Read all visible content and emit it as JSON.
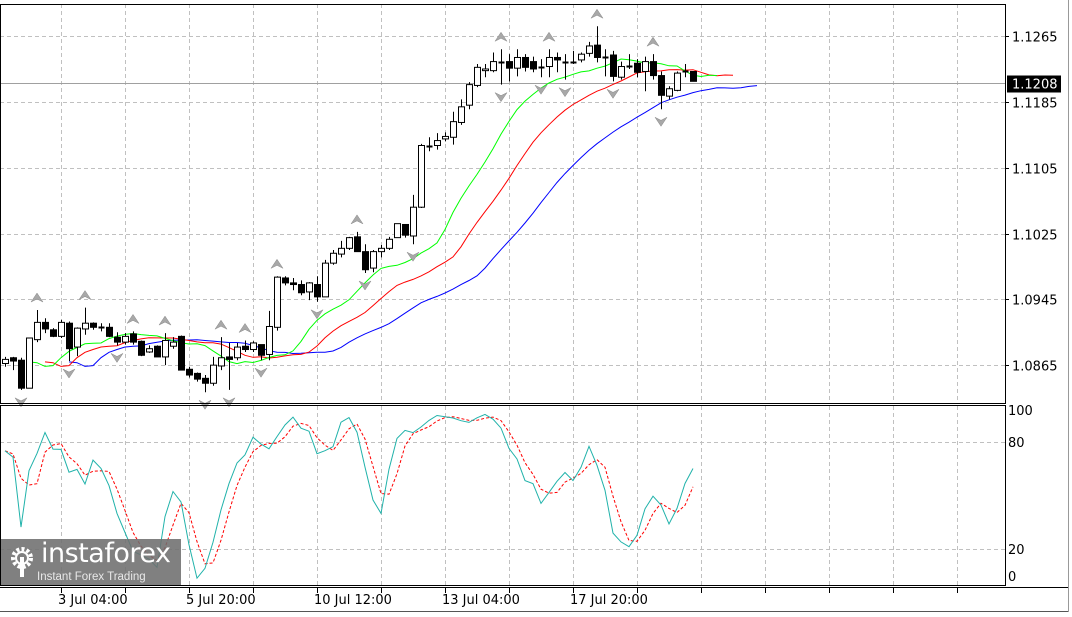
{
  "chart_data": {
    "type": "candlestick",
    "ylim": [
      1.0819,
      1.1304
    ],
    "price_ticks": [
      "1.1265",
      "1.1185",
      "1.1105",
      "1.1025",
      "1.0945",
      "1.0865"
    ],
    "current_price": "1.1208",
    "x_tick_labels": [
      {
        "label": "3 Jul 04:00",
        "candle_index": 7
      },
      {
        "label": "5 Jul 20:00",
        "candle_index": 23
      },
      {
        "label": "10 Jul 12:00",
        "candle_index": 39
      },
      {
        "label": "13 Jul 04:00",
        "candle_index": 55
      },
      {
        "label": "17 Jul 20:00",
        "candle_index": 71
      }
    ],
    "grid": true,
    "candles": [
      [
        1.0867,
        1.0875,
        1.0863,
        1.0872
      ],
      [
        1.0874,
        1.0875,
        1.0859,
        1.087
      ],
      [
        1.0871,
        1.0874,
        1.0835,
        1.0837
      ],
      [
        1.0837,
        1.0898,
        1.0837,
        1.0898
      ],
      [
        1.0896,
        1.0932,
        1.0893,
        1.0917
      ],
      [
        1.0917,
        1.0922,
        1.0904,
        1.0909
      ],
      [
        1.0908,
        1.091,
        1.0899,
        1.09
      ],
      [
        1.09,
        1.092,
        1.0898,
        1.0917
      ],
      [
        1.0916,
        1.0918,
        1.087,
        1.0885
      ],
      [
        1.0887,
        1.0911,
        1.0876,
        1.091
      ],
      [
        1.0909,
        1.0935,
        1.0902,
        1.0916
      ],
      [
        1.0916,
        1.0917,
        1.0908,
        1.0911
      ],
      [
        1.0911,
        1.0916,
        1.0906,
        1.091
      ],
      [
        1.0911,
        1.0916,
        1.0899,
        1.09
      ],
      [
        1.0899,
        1.0905,
        1.0889,
        1.0893
      ],
      [
        1.0893,
        1.0904,
        1.089,
        1.09
      ],
      [
        1.0903,
        1.0906,
        1.089,
        1.0893
      ],
      [
        1.0894,
        1.0895,
        1.0876,
        1.0877
      ],
      [
        1.0881,
        1.0889,
        1.088,
        1.0885
      ],
      [
        1.0888,
        1.0889,
        1.0875,
        1.0875
      ],
      [
        1.0875,
        1.0904,
        1.0865,
        1.0895
      ],
      [
        1.0888,
        1.0899,
        1.0885,
        1.0893
      ],
      [
        1.09,
        1.0901,
        1.0859,
        1.0859
      ],
      [
        1.086,
        1.0863,
        1.085,
        1.0853
      ],
      [
        1.0855,
        1.0856,
        1.0845,
        1.0848
      ],
      [
        1.0849,
        1.0853,
        1.0832,
        1.0843
      ],
      [
        1.0843,
        1.0875,
        1.084,
        1.0865
      ],
      [
        1.0864,
        1.0899,
        1.0859,
        1.0874
      ],
      [
        1.0875,
        1.0892,
        1.0835,
        1.0872
      ],
      [
        1.0874,
        1.0892,
        1.0871,
        1.0887
      ],
      [
        1.0888,
        1.0895,
        1.0881,
        1.0884
      ],
      [
        1.0884,
        1.0894,
        1.0881,
        1.0892
      ],
      [
        1.089,
        1.089,
        1.0871,
        1.0877
      ],
      [
        1.0878,
        1.0931,
        1.0871,
        1.0912
      ],
      [
        1.0911,
        1.0973,
        1.0907,
        1.0972
      ],
      [
        1.0971,
        1.0973,
        1.0962,
        1.0965
      ],
      [
        1.0965,
        1.0971,
        1.0956,
        1.0963
      ],
      [
        1.0963,
        1.0968,
        1.095,
        1.0953
      ],
      [
        1.0954,
        1.0966,
        1.0944,
        1.0965
      ],
      [
        1.0963,
        1.0973,
        1.0942,
        1.0948
      ],
      [
        1.0948,
        1.0993,
        1.0948,
        1.0989
      ],
      [
        1.0989,
        1.1005,
        1.0987,
        1.1001
      ],
      [
        1.1,
        1.1016,
        1.0996,
        1.1007
      ],
      [
        1.1007,
        1.1021,
        1.1005,
        1.102
      ],
      [
        1.1021,
        1.1027,
        1.1003,
        1.1003
      ],
      [
        1.1003,
        1.1012,
        1.0977,
        1.0981
      ],
      [
        1.0983,
        1.1005,
        1.0978,
        1.1003
      ],
      [
        1.1003,
        1.1011,
        1.0996,
        1.1007
      ],
      [
        1.1007,
        1.1021,
        1.1005,
        1.1018
      ],
      [
        1.102,
        1.1037,
        1.102,
        1.1037
      ],
      [
        1.1036,
        1.1036,
        1.102,
        1.1023
      ],
      [
        1.1022,
        1.1072,
        1.1012,
        1.1057
      ],
      [
        1.1057,
        1.1134,
        1.1056,
        1.1132
      ],
      [
        1.1131,
        1.1142,
        1.1125,
        1.1132
      ],
      [
        1.1132,
        1.1147,
        1.1127,
        1.1138
      ],
      [
        1.114,
        1.1148,
        1.1137,
        1.1143
      ],
      [
        1.1142,
        1.1173,
        1.1133,
        1.1161
      ],
      [
        1.116,
        1.1188,
        1.1157,
        1.1179
      ],
      [
        1.1181,
        1.1209,
        1.1176,
        1.1206
      ],
      [
        1.1205,
        1.1231,
        1.1203,
        1.1227
      ],
      [
        1.1223,
        1.1231,
        1.1215,
        1.1225
      ],
      [
        1.1223,
        1.1245,
        1.1221,
        1.1234
      ],
      [
        1.1233,
        1.1249,
        1.1206,
        1.1234
      ],
      [
        1.1234,
        1.1243,
        1.121,
        1.1226
      ],
      [
        1.1226,
        1.1249,
        1.1216,
        1.1239
      ],
      [
        1.1239,
        1.1243,
        1.1222,
        1.1227
      ],
      [
        1.1234,
        1.124,
        1.1221,
        1.1225
      ],
      [
        1.1228,
        1.1237,
        1.1215,
        1.1227
      ],
      [
        1.1228,
        1.1249,
        1.1215,
        1.1239
      ],
      [
        1.1239,
        1.1245,
        1.1221,
        1.1236
      ],
      [
        1.1234,
        1.1243,
        1.1212,
        1.1233
      ],
      [
        1.1234,
        1.1247,
        1.1231,
        1.1233
      ],
      [
        1.1236,
        1.1245,
        1.1233,
        1.1243
      ],
      [
        1.1244,
        1.1258,
        1.124,
        1.1253
      ],
      [
        1.1254,
        1.1277,
        1.1233,
        1.1239
      ],
      [
        1.1239,
        1.1249,
        1.1216,
        1.1239
      ],
      [
        1.1242,
        1.1247,
        1.121,
        1.1216
      ],
      [
        1.1215,
        1.1234,
        1.1212,
        1.1228
      ],
      [
        1.1228,
        1.1243,
        1.1225,
        1.1229
      ],
      [
        1.1232,
        1.1237,
        1.1215,
        1.1221
      ],
      [
        1.1222,
        1.124,
        1.1198,
        1.1234
      ],
      [
        1.1234,
        1.1243,
        1.1212,
        1.1217
      ],
      [
        1.1217,
        1.1222,
        1.1176,
        1.1193
      ],
      [
        1.1192,
        1.1204,
        1.1188,
        1.1201
      ],
      [
        1.1199,
        1.1222,
        1.1198,
        1.122
      ],
      [
        1.1222,
        1.1231,
        1.1215,
        1.1221
      ],
      [
        1.1222,
        1.1222,
        1.121,
        1.121
      ]
    ],
    "indicators": {
      "alligator": {
        "jaw": {
          "period": 13,
          "shift": 8,
          "color": "#0000ff"
        },
        "teeth": {
          "period": 8,
          "shift": 5,
          "color": "#ff0000"
        },
        "lips": {
          "period": 5,
          "shift": 3,
          "color": "#00ff00"
        }
      },
      "fractals": {
        "color": "#a8a8a8"
      },
      "stochastic": {
        "k_period": 5,
        "d_period": 3,
        "slowing": 3,
        "levels": [
          20,
          80
        ],
        "ylim": [
          0,
          100
        ],
        "ticks": [
          "100",
          "80",
          "20",
          "0"
        ],
        "main_color": "#20b2aa",
        "signal_color": "#ff0000"
      }
    }
  },
  "logo": {
    "name": "instaforex",
    "tagline": "Instant Forex Trading"
  }
}
